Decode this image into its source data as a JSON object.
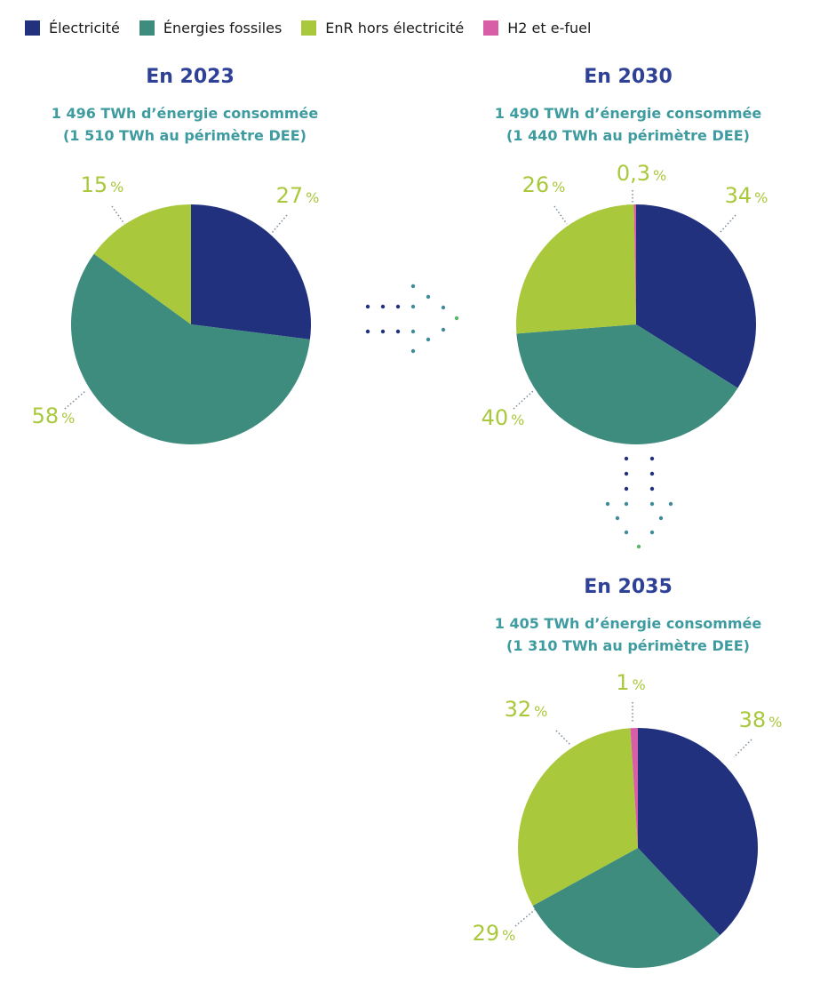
{
  "colors": {
    "electricite": "#22317e",
    "fossiles": "#3e8c7e",
    "enr": "#a9c83c",
    "h2": "#d85fa7",
    "title": "#2f4197",
    "subtitle": "#3e9ba0",
    "label": "#a9c83c",
    "dots_blue": "#22317e",
    "dots_teal": "#3e8c9a",
    "dots_green": "#56b86a"
  },
  "legend": [
    {
      "label": "Électricité",
      "color_key": "electricite"
    },
    {
      "label": "Énergies fossiles",
      "color_key": "fossiles"
    },
    {
      "label": "EnR hors électricité",
      "color_key": "enr"
    },
    {
      "label": "H2 et e-fuel",
      "color_key": "h2"
    }
  ],
  "chart_data": [
    {
      "type": "pie",
      "title": "En 2023",
      "subtitle_line1": "1 496 TWh d’énergie consommée",
      "subtitle_line2": "(1 510 TWh au périmètre DEE)",
      "categories": [
        "Électricité",
        "Énergies fossiles",
        "EnR hors électricité"
      ],
      "values": [
        27,
        58,
        15
      ],
      "labels": [
        "27",
        "58",
        "15"
      ],
      "unit": "%"
    },
    {
      "type": "pie",
      "title": "En 2030",
      "subtitle_line1": "1 490 TWh d’énergie consommée",
      "subtitle_line2": "(1 440 TWh au périmètre DEE)",
      "categories": [
        "Électricité",
        "Énergies fossiles",
        "EnR hors électricité",
        "H2 et e-fuel"
      ],
      "values": [
        34,
        40,
        26,
        0.3
      ],
      "labels": [
        "34",
        "40",
        "26",
        "0,3"
      ],
      "unit": "%"
    },
    {
      "type": "pie",
      "title": "En 2035",
      "subtitle_line1": "1 405 TWh d’énergie consommée",
      "subtitle_line2": "(1 310 TWh au périmètre DEE)",
      "categories": [
        "Électricité",
        "Énergies fossiles",
        "EnR hors électricité",
        "H2 et e-fuel"
      ],
      "values": [
        38,
        29,
        32,
        1
      ],
      "labels": [
        "38",
        "29",
        "32",
        "1"
      ],
      "unit": "%"
    }
  ]
}
